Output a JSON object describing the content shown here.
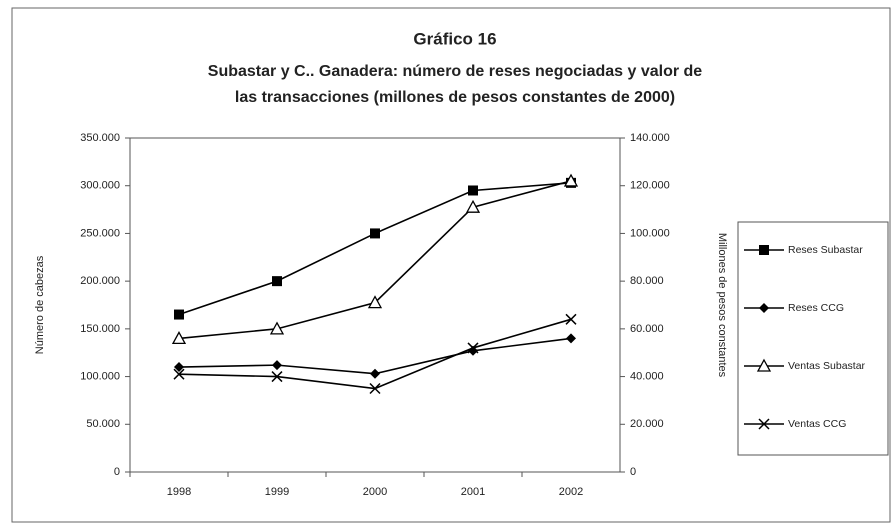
{
  "chart_data": {
    "type": "line",
    "title": "Gráfico 16",
    "subtitle": [
      "Subastar y C.. Ganadera: número de reses negociadas y valor de",
      "las transacciones (millones de pesos constantes de 2000)"
    ],
    "ylabel": "Número de cabezas",
    "y2label": "Millones de pesos constantes",
    "categories": [
      "1998",
      "1999",
      "2000",
      "2001",
      "2002"
    ],
    "ylim": [
      0,
      350000
    ],
    "yticks": [
      0,
      {
        "value": 50000,
        "label": "50.000"
      },
      {
        "value": 100000,
        "label": "100.000"
      },
      {
        "value": 150000,
        "label": "150.000"
      },
      {
        "value": 200000,
        "label": "200.000"
      },
      {
        "value": 250000,
        "label": "250.000"
      },
      {
        "value": 300000,
        "label": "300.000"
      },
      {
        "value": 350000,
        "label": "350.000"
      }
    ],
    "y2lim": [
      0,
      140000
    ],
    "y2ticks": [
      0,
      {
        "value": 20000,
        "label": "20.000"
      },
      {
        "value": 40000,
        "label": "40.000"
      },
      {
        "value": 60000,
        "label": "60.000"
      },
      {
        "value": 80000,
        "label": "80.000"
      },
      {
        "value": 100000,
        "label": "100.000"
      },
      {
        "value": 120000,
        "label": "120.000"
      },
      {
        "value": 140000,
        "label": "140.000"
      }
    ],
    "legend": "right",
    "series": [
      {
        "name": "Reses Subastar",
        "color": "#000000",
        "marker": "square",
        "values": [
          165000,
          200000,
          250000,
          295000,
          303000
        ]
      },
      {
        "name": "Reses CCG",
        "color": "#000000",
        "marker": "diamond",
        "values": [
          110000,
          112000,
          103000,
          127000,
          140000
        ]
      },
      {
        "name": "Ventas Subastar",
        "color": "#000000",
        "marker": "triangle",
        "axis": "y2",
        "values": [
          56000,
          60000,
          71000,
          111000,
          122000
        ]
      },
      {
        "name": "Ventas CCG",
        "color": "#000000",
        "marker": "x",
        "axis": "y2",
        "values": [
          41000,
          40000,
          35000,
          52000,
          64000
        ]
      }
    ]
  }
}
